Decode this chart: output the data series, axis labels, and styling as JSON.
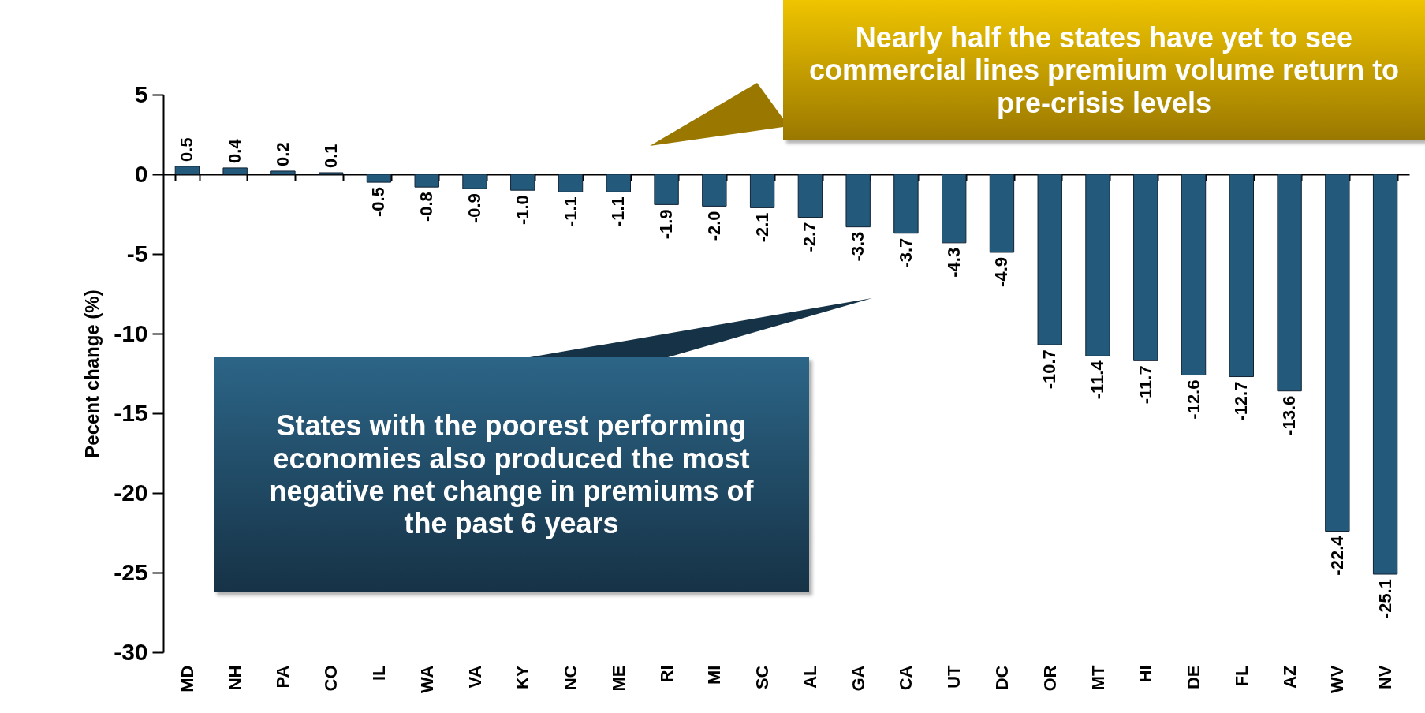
{
  "chart_data": {
    "type": "bar",
    "ylabel": "Pecent change (%)",
    "categories": [
      "MD",
      "NH",
      "PA",
      "CO",
      "IL",
      "WA",
      "VA",
      "KY",
      "NC",
      "ME",
      "RI",
      "MI",
      "SC",
      "AL",
      "GA",
      "CA",
      "UT",
      "DC",
      "OR",
      "MT",
      "HI",
      "DE",
      "FL",
      "AZ",
      "WV",
      "NV"
    ],
    "values": [
      0.5,
      0.4,
      0.2,
      0.1,
      -0.5,
      -0.8,
      -0.9,
      -1.0,
      -1.1,
      -1.1,
      -1.9,
      -2.0,
      -2.1,
      -2.7,
      -3.3,
      -3.7,
      -4.3,
      -4.9,
      -10.7,
      -11.4,
      -11.7,
      -12.6,
      -12.7,
      -13.6,
      -22.4,
      -25.1
    ],
    "value_labels": [
      "0.5",
      "0.4",
      "0.2",
      "0.1",
      "-0.5",
      "-0.8",
      "-0.9",
      "-1.0",
      "-1.1",
      "-1.1",
      "-1.9",
      "-2.0",
      "-2.1",
      "-2.7",
      "-3.3",
      "-3.7",
      "-4.3",
      "-4.9",
      "-10.7",
      "-11.4",
      "-11.7",
      "-12.6",
      "-12.7",
      "-13.6",
      "-22.4",
      "-25.1"
    ],
    "color": "#235a7c",
    "ylim": [
      -30,
      5
    ],
    "yticks": [
      -30,
      -25,
      -20,
      -15,
      -10,
      -5,
      0,
      5
    ],
    "annotations": [
      "Nearly half the states have yet to see commercial lines premium volume return to pre-crisis levels",
      "States with the poorest performing economies also produced the most negative net change in premiums of the past 6 years"
    ]
  }
}
